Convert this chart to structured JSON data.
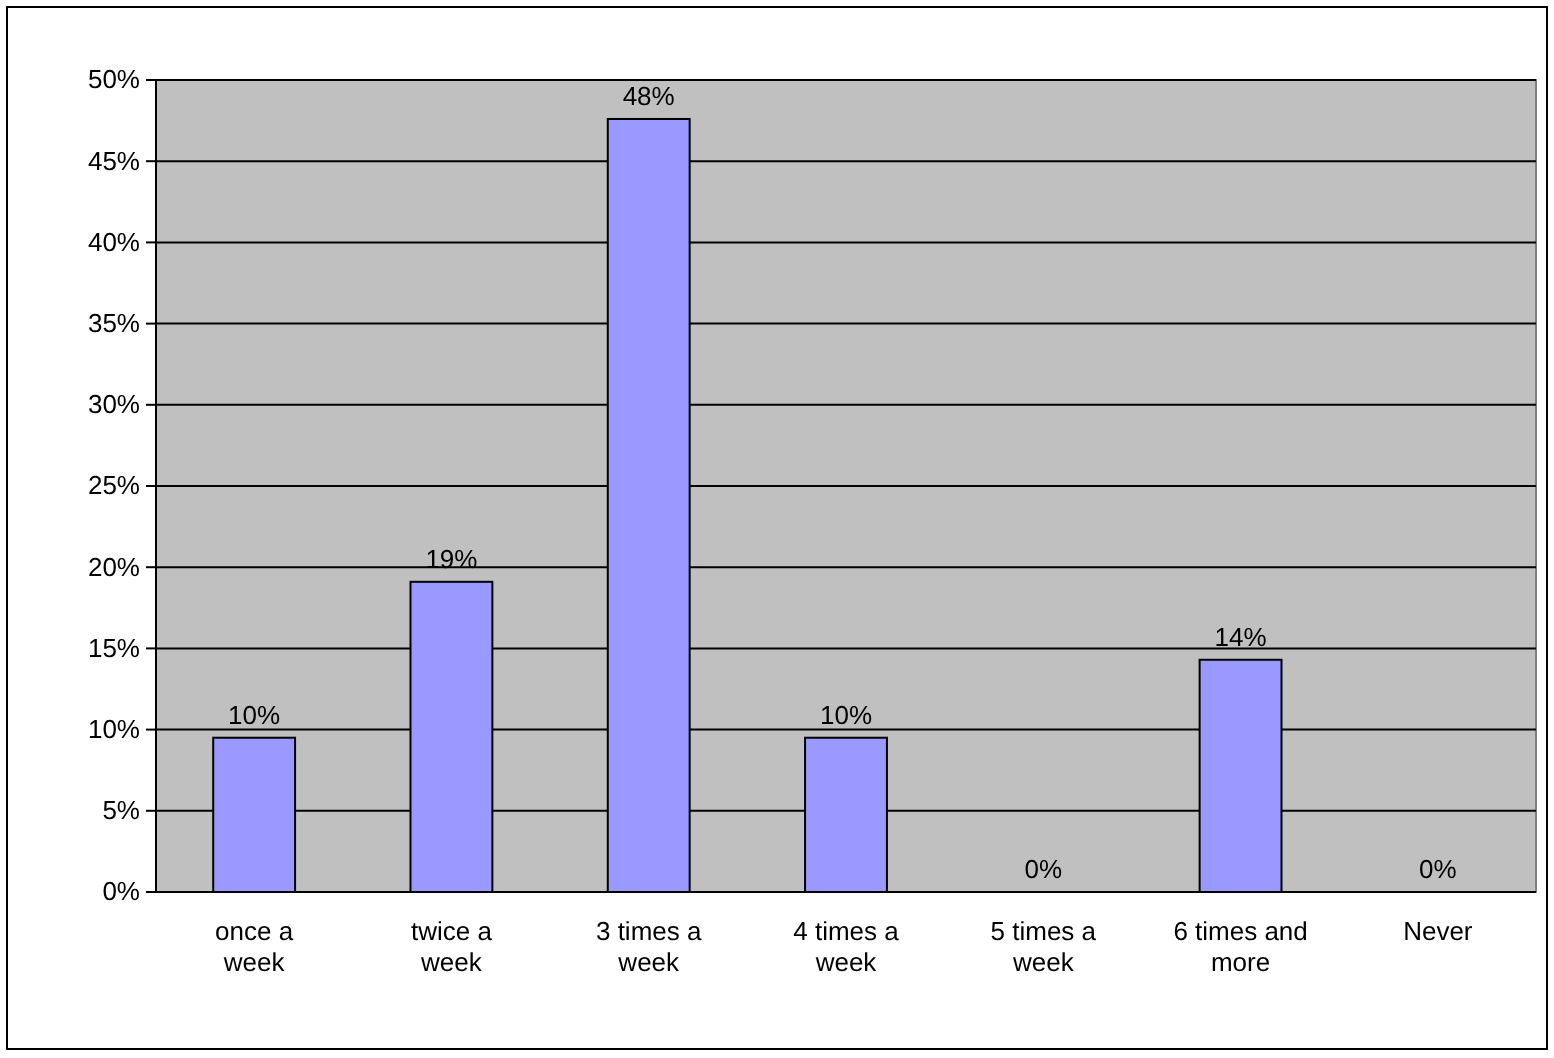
{
  "chart_data": {
    "type": "bar",
    "categories": [
      "once a week",
      "twice a week",
      "3 times a week",
      "4 times a week",
      "5 times a week",
      "6 times and more",
      "Never"
    ],
    "values": [
      9.5,
      19.1,
      47.6,
      9.5,
      0,
      14.3,
      0
    ],
    "value_labels": [
      "10%",
      "19%",
      "48%",
      "10%",
      "0%",
      "14%",
      "0%"
    ],
    "color": "#9999ff",
    "ylim": [
      0,
      50
    ],
    "yticks": [
      {
        "value": 0,
        "label": "0%"
      },
      {
        "value": 5,
        "label": "5%"
      },
      {
        "value": 10,
        "label": "10%"
      },
      {
        "value": 15,
        "label": "15%"
      },
      {
        "value": 20,
        "label": "20%"
      },
      {
        "value": 25,
        "label": "25%"
      },
      {
        "value": 30,
        "label": "30%"
      },
      {
        "value": 35,
        "label": "35%"
      },
      {
        "value": 40,
        "label": "40%"
      },
      {
        "value": 45,
        "label": "45%"
      },
      {
        "value": 50,
        "label": "50%"
      }
    ],
    "grid": "y"
  }
}
